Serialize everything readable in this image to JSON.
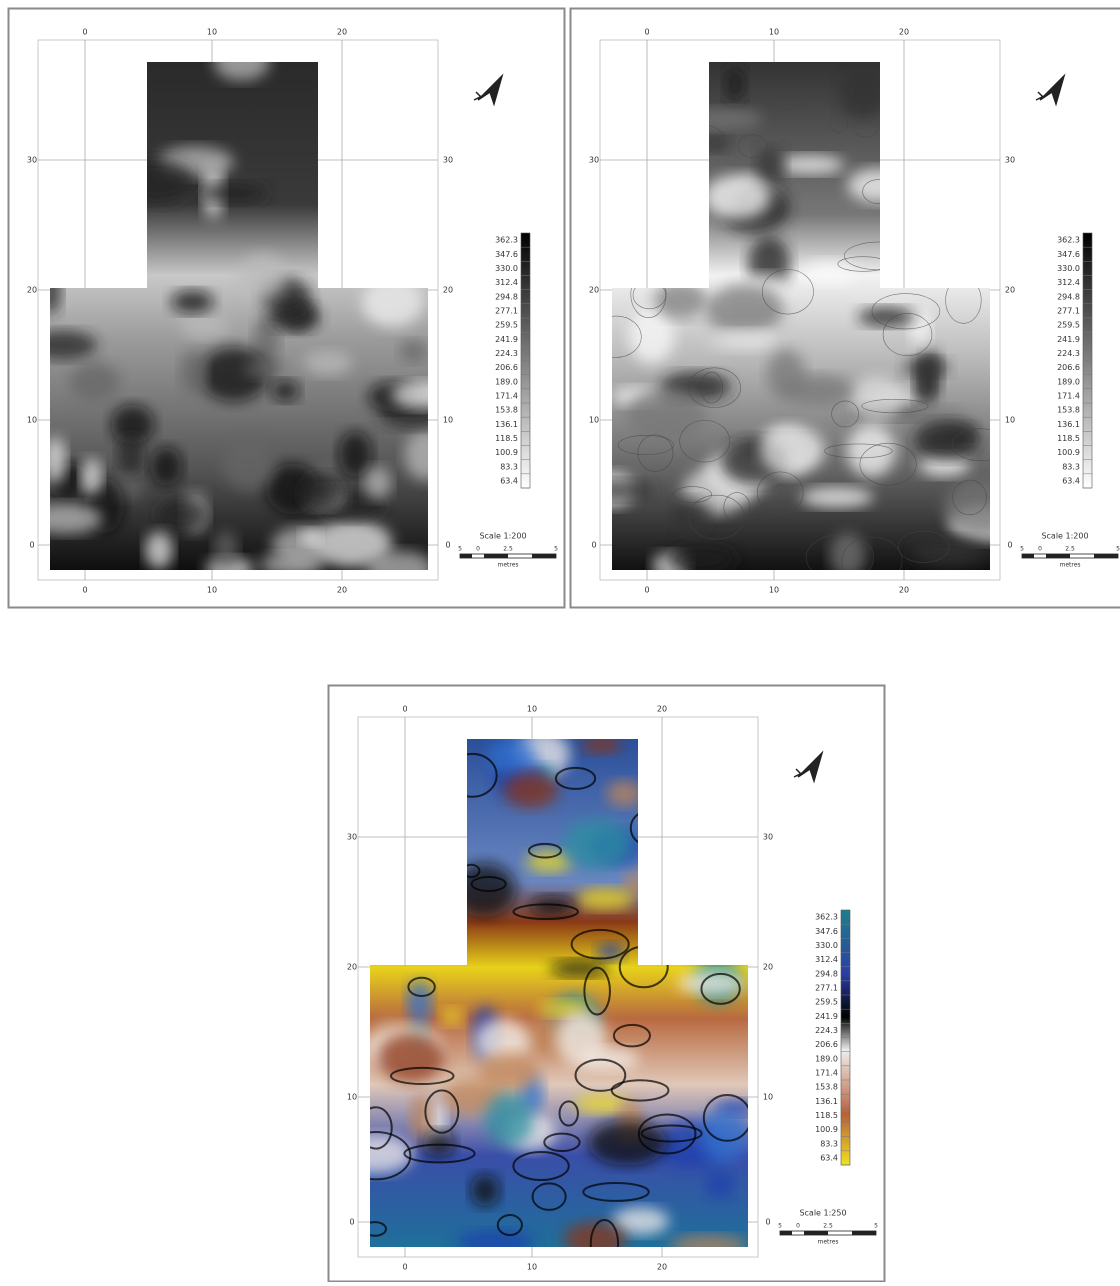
{
  "panels": [
    {
      "x_ticks": [
        "0",
        "10",
        "20"
      ],
      "y_ticks": [
        "30",
        "20",
        "10",
        "0"
      ],
      "legend": [
        "362.3",
        "347.6",
        "330.0",
        "312.4",
        "294.8",
        "277.1",
        "259.5",
        "241.9",
        "224.3",
        "206.6",
        "189.0",
        "171.4",
        "153.8",
        "136.1",
        "118.5",
        "100.9",
        "83.3",
        "63.4"
      ],
      "scale": {
        "title": "Scale 1:200",
        "ticks": [
          "5",
          "0",
          "2.5",
          "5"
        ],
        "unit": "metres"
      }
    },
    {
      "x_ticks": [
        "0",
        "10",
        "20"
      ],
      "y_ticks": [
        "30",
        "20",
        "10",
        "0"
      ],
      "legend": [
        "362.3",
        "347.6",
        "330.0",
        "312.4",
        "294.8",
        "277.1",
        "259.5",
        "241.9",
        "224.3",
        "206.6",
        "189.0",
        "171.4",
        "153.8",
        "136.1",
        "118.5",
        "100.9",
        "83.3",
        "63.4"
      ],
      "scale": {
        "title": "Scale 1:200",
        "ticks": [
          "5",
          "0",
          "2.5",
          "5"
        ],
        "unit": "metres"
      }
    },
    {
      "x_ticks": [
        "0",
        "10",
        "20"
      ],
      "y_ticks": [
        "30",
        "20",
        "10",
        "0"
      ],
      "legend": [
        "362.3",
        "347.6",
        "330.0",
        "312.4",
        "294.8",
        "277.1",
        "259.5",
        "241.9",
        "224.3",
        "206.6",
        "189.0",
        "171.4",
        "153.8",
        "136.1",
        "118.5",
        "100.9",
        "83.3",
        "63.4"
      ],
      "scale": {
        "title": "Scale 1:250",
        "ticks": [
          "5",
          "0",
          "2.5",
          "5"
        ],
        "unit": "metres"
      }
    }
  ]
}
